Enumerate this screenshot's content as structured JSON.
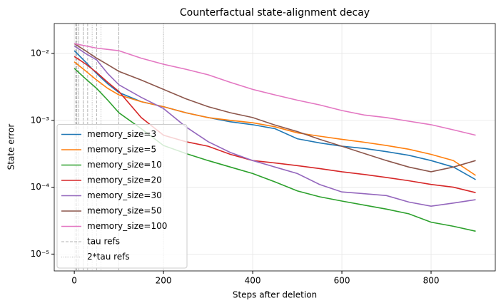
{
  "chart_data": {
    "type": "line",
    "title": "Counterfactual state-alignment decay",
    "x_label": "Steps after deletion",
    "y_label": "State error",
    "x": [
      0,
      25,
      50,
      75,
      100,
      150,
      200,
      250,
      300,
      350,
      400,
      450,
      500,
      550,
      600,
      650,
      700,
      750,
      800,
      850,
      900
    ],
    "series": [
      {
        "name": "memory_size=3",
        "color": "#1f77b4",
        "values": [
          0.011,
          0.0075,
          0.005,
          0.0035,
          0.0026,
          0.0019,
          0.0016,
          0.0013,
          0.0011,
          0.00095,
          0.00086,
          0.00075,
          0.00053,
          0.00046,
          0.00041,
          0.00038,
          0.00034,
          0.0003,
          0.00025,
          0.0002,
          0.00013
        ]
      },
      {
        "name": "memory_size=5",
        "color": "#ff7f0e",
        "values": [
          0.0075,
          0.0055,
          0.004,
          0.003,
          0.0024,
          0.0019,
          0.0016,
          0.0013,
          0.0011,
          0.001,
          0.00092,
          0.0008,
          0.00065,
          0.00058,
          0.00052,
          0.00047,
          0.00042,
          0.00037,
          0.00031,
          0.00025,
          0.00015
        ]
      },
      {
        "name": "memory_size=10",
        "color": "#2ca02c",
        "values": [
          0.006,
          0.0042,
          0.003,
          0.002,
          0.0013,
          0.00075,
          0.00042,
          0.00032,
          0.00025,
          0.0002,
          0.00016,
          0.00012,
          8.8e-05,
          7.2e-05,
          6.2e-05,
          5.4e-05,
          4.7e-05,
          4e-05,
          3e-05,
          2.6e-05,
          2.2e-05
        ]
      },
      {
        "name": "memory_size=20",
        "color": "#d62728",
        "values": [
          0.009,
          0.007,
          0.0052,
          0.0037,
          0.0027,
          0.0011,
          0.0006,
          0.00048,
          0.00041,
          0.00031,
          0.00025,
          0.00023,
          0.00021,
          0.00019,
          0.00017,
          0.000155,
          0.00014,
          0.000125,
          0.00011,
          0.0001,
          8.3e-05
        ]
      },
      {
        "name": "memory_size=30",
        "color": "#9467bd",
        "values": [
          0.013,
          0.01,
          0.008,
          0.005,
          0.0034,
          0.0022,
          0.0015,
          0.0008,
          0.00048,
          0.00033,
          0.00025,
          0.0002,
          0.00016,
          0.00011,
          8.5e-05,
          8e-05,
          7.5e-05,
          6e-05,
          5.2e-05,
          5.8e-05,
          6.5e-05
        ]
      },
      {
        "name": "memory_size=50",
        "color": "#8c564b",
        "values": [
          0.014,
          0.011,
          0.0085,
          0.0068,
          0.0054,
          0.004,
          0.0029,
          0.0021,
          0.0016,
          0.0013,
          0.0011,
          0.00085,
          0.00068,
          0.00052,
          0.00041,
          0.00032,
          0.00025,
          0.0002,
          0.00017,
          0.0002,
          0.00025
        ]
      },
      {
        "name": "memory_size=100",
        "color": "#e377c2",
        "values": [
          0.014,
          0.013,
          0.012,
          0.0115,
          0.011,
          0.0085,
          0.0069,
          0.0058,
          0.0048,
          0.0037,
          0.0029,
          0.0024,
          0.002,
          0.0017,
          0.0014,
          0.0012,
          0.0011,
          0.00097,
          0.00086,
          0.00072,
          0.0006
        ]
      }
    ],
    "ref_lines": [
      {
        "name": "tau refs",
        "color": "#999999",
        "style": "dashed",
        "x": [
          3,
          5,
          10,
          20,
          30,
          50,
          100
        ]
      },
      {
        "name": "2*tau refs",
        "color": "#999999",
        "style": "dotted",
        "x": [
          6,
          10,
          20,
          40,
          60,
          100,
          200
        ]
      }
    ],
    "xlim": [
      -45,
      944
    ],
    "xticks": [
      0,
      200,
      400,
      600,
      800
    ],
    "ylim": [
      5.6e-06,
      0.028
    ],
    "y_scale": "log",
    "yticks": [
      {
        "value": 0.01,
        "label": "10⁻²"
      },
      {
        "value": 0.001,
        "label": "10⁻³"
      },
      {
        "value": 0.0001,
        "label": "10⁻⁴"
      },
      {
        "value": 1e-05,
        "label": "10⁻⁵"
      }
    ],
    "grid": true,
    "legend_location": "lower left"
  }
}
